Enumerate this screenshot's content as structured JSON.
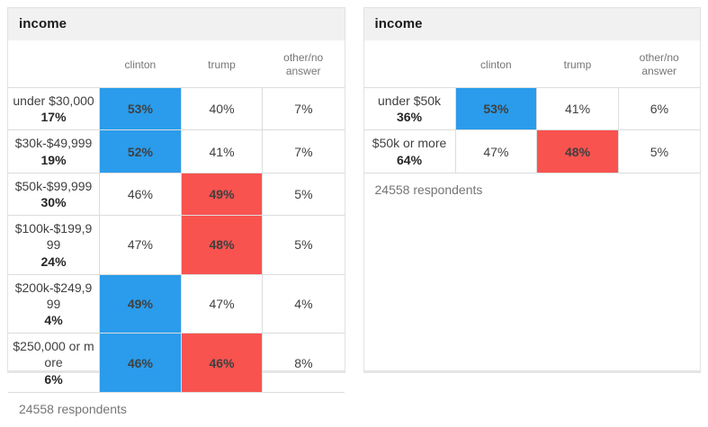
{
  "colors": {
    "clinton_win": "#2a9ceb",
    "trump_win": "#f8534f",
    "title_bar_bg": "#f1f1f1",
    "grid_line": "#dcdcdc"
  },
  "tables": [
    {
      "title": "income",
      "columns": [
        "clinton",
        "trump",
        "other/no answer"
      ],
      "rows": [
        {
          "label": "under $30,000",
          "share": "17%",
          "values": [
            "53%",
            "40%",
            "7%"
          ],
          "highlights": [
            0
          ]
        },
        {
          "label": "$30k-$49,999",
          "share": "19%",
          "values": [
            "52%",
            "41%",
            "7%"
          ],
          "highlights": [
            0
          ]
        },
        {
          "label": "$50k-$99,999",
          "share": "30%",
          "values": [
            "46%",
            "49%",
            "5%"
          ],
          "highlights": [
            1
          ]
        },
        {
          "label": "$100k-$199,999",
          "share": "24%",
          "values": [
            "47%",
            "48%",
            "5%"
          ],
          "highlights": [
            1
          ]
        },
        {
          "label": "$200k-$249,999",
          "share": "4%",
          "values": [
            "49%",
            "47%",
            "4%"
          ],
          "highlights": [
            0
          ]
        },
        {
          "label": "$250,000 or more",
          "share": "6%",
          "values": [
            "46%",
            "46%",
            "8%"
          ],
          "highlights": [
            0,
            1
          ]
        }
      ],
      "footer": "24558 respondents"
    },
    {
      "title": "income",
      "columns": [
        "clinton",
        "trump",
        "other/no answer"
      ],
      "rows": [
        {
          "label": "under $50k",
          "share": "36%",
          "values": [
            "53%",
            "41%",
            "6%"
          ],
          "highlights": [
            0
          ]
        },
        {
          "label": "$50k or more",
          "share": "64%",
          "values": [
            "47%",
            "48%",
            "5%"
          ],
          "highlights": [
            1
          ]
        }
      ],
      "footer": "24558 respondents"
    }
  ],
  "chart_data": [
    {
      "type": "table",
      "title": "income",
      "categories": [
        "under $30,000",
        "$30k-$49,999",
        "$50k-$99,999",
        "$100k-$199,999",
        "$200k-$249,999",
        "$250,000 or more"
      ],
      "category_shares_pct": [
        17,
        19,
        30,
        24,
        4,
        6
      ],
      "series": [
        {
          "name": "clinton",
          "values": [
            53,
            52,
            46,
            47,
            49,
            46
          ]
        },
        {
          "name": "trump",
          "values": [
            40,
            41,
            49,
            48,
            47,
            46
          ]
        },
        {
          "name": "other/no answer",
          "values": [
            7,
            7,
            5,
            5,
            4,
            8
          ]
        }
      ],
      "respondents": 24558
    },
    {
      "type": "table",
      "title": "income",
      "categories": [
        "under $50k",
        "$50k or more"
      ],
      "category_shares_pct": [
        36,
        64
      ],
      "series": [
        {
          "name": "clinton",
          "values": [
            53,
            47
          ]
        },
        {
          "name": "trump",
          "values": [
            41,
            48
          ]
        },
        {
          "name": "other/no answer",
          "values": [
            6,
            5
          ]
        }
      ],
      "respondents": 24558
    }
  ]
}
